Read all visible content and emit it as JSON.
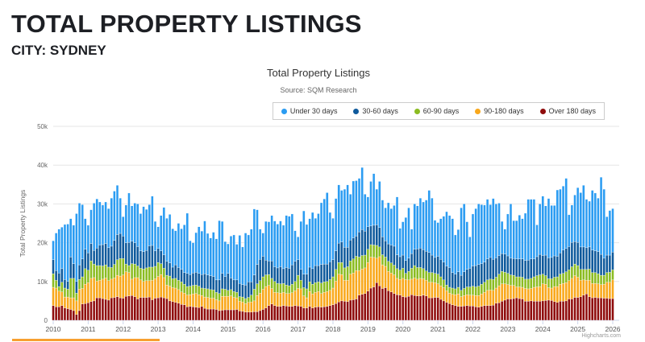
{
  "header": {
    "title": "TOTAL PROPERTY LISTINGS",
    "subtitle": "CITY: SYDNEY"
  },
  "chart_data": {
    "type": "bar",
    "stacked": true,
    "title": "Total Property Listings",
    "subtitle": "Source: SQM Research",
    "ylabel": "Total Property Listings",
    "xlabel": "",
    "ylim": [
      0,
      50
    ],
    "y_unit": "k",
    "yticks": [
      {
        "v": 0,
        "label": "0"
      },
      {
        "v": 10,
        "label": "10k"
      },
      {
        "v": 20,
        "label": "20k"
      },
      {
        "v": 30,
        "label": "30k"
      },
      {
        "v": 40,
        "label": "40k"
      },
      {
        "v": 50,
        "label": "50k"
      }
    ],
    "x_range": [
      "2010-01",
      "2026-01"
    ],
    "x_frequency": "monthly",
    "xticks": [
      "2010",
      "2011",
      "2012",
      "2013",
      "2014",
      "2015",
      "2016",
      "2017",
      "2018",
      "2019",
      "2020",
      "2021",
      "2022",
      "2023",
      "2024",
      "2025",
      "2026"
    ],
    "grid": true,
    "legend_position": "top-right",
    "credit": "Highcharts.com",
    "series": [
      {
        "name": "Under 30 days",
        "color": "#2b9cf2",
        "values": [
          4.9,
          9.7,
          11.3,
          10.7,
          14.2,
          14.8,
          9.9,
          9.9,
          17.5,
          15.9,
          14,
          7.9,
          7.1,
          8.7,
          12.2,
          12.7,
          11.1,
          10.2,
          10.7,
          10.1,
          12.4,
          12.7,
          12.7,
          9.1,
          5,
          9.7,
          12.7,
          9.1,
          10.2,
          11,
          9.6,
          11.6,
          10.6,
          10.6,
          12.7,
          7.6,
          5.6,
          9.1,
          12.2,
          11.1,
          12.5,
          9.9,
          8.8,
          11.4,
          10.5,
          12.3,
          15.5,
          8.7,
          7.8,
          10.2,
          12,
          11.2,
          13.6,
          10.7,
          9.7,
          11.4,
          10.6,
          15.3,
          13.4,
          9,
          7.6,
          10.8,
          11.6,
          9.2,
          12.4,
          9.7,
          13.4,
          12.1,
          13.6,
          17,
          14.1,
          7.8,
          6,
          10,
          10.1,
          11.7,
          11.8,
          11.3,
          11.8,
          11.2,
          13.4,
          13.4,
          13.1,
          7.9,
          5.9,
          12.4,
          16.3,
          12.8,
          12.5,
          14.5,
          12.2,
          13.4,
          15.9,
          16.8,
          18.4,
          12.7,
          10.7,
          13.5,
          15,
          13.3,
          15,
          16.1,
          11.8,
          14.7,
          14.3,
          13.8,
          16,
          9.5,
          7.7,
          11.5,
          13.3,
          9.2,
          11.9,
          9.5,
          8.5,
          10.6,
          9.4,
          10.5,
          14.9,
          7.3,
          8.6,
          11.1,
          13,
          6.3,
          11.7,
          11.1,
          12.9,
          12.3,
          13.2,
          16,
          14.7,
          9.6,
          8.7,
          10.5,
          11.8,
          14,
          13.4,
          13.9,
          10.1,
          10.9,
          17.4,
          17.5,
          12.3,
          8.1,
          13.4,
          14.7,
          15.6,
          15.2,
          14.7,
          15.4,
          13.6,
          15.7,
          13.9,
          13.5,
          8.3,
          6.4,
          10.8,
          14,
          9.8,
          9.9,
          11.3,
          10.4,
          12.2,
          15.7,
          15.4,
          15.4,
          8.2,
          13,
          15.3,
          12.7,
          15.3,
          13.4,
          13,
          17.1,
          16.4,
          16.5,
          18.1,
          8.2,
          9.6,
          12,
          14.1,
          14,
          15.9,
          12.5,
          11.8,
          15.4,
          14.9,
          13.8,
          19.9,
          17.8,
          9.9,
          11.5,
          11.2
        ]
      },
      {
        "name": "30-60 days",
        "color": "#0f5a9c",
        "values": [
          3.6,
          2.5,
          3.5,
          3.5,
          2.2,
          2,
          5.5,
          3.8,
          3,
          3.8,
          4.6,
          5,
          4.5,
          4.5,
          3.5,
          4.5,
          5.3,
          5.5,
          5.5,
          5,
          5.5,
          6.2,
          6.5,
          6.5,
          5.8,
          5.5,
          6,
          5.8,
          5.5,
          5,
          4.5,
          4.5,
          4.5,
          5.5,
          5.6,
          4,
          3.6,
          3.3,
          3.5,
          3.6,
          3.4,
          3,
          3.5,
          3.3,
          3.2,
          3,
          3.4,
          3,
          3.2,
          3.3,
          3.3,
          3.5,
          3.8,
          3.6,
          3.6,
          3.5,
          3.2,
          3.5,
          4,
          3.3,
          4.4,
          3,
          3,
          3.2,
          3.4,
          3.2,
          3.5,
          4,
          3.4,
          3.7,
          5,
          5.5,
          5.3,
          3.8,
          3.5,
          4.5,
          3.8,
          4,
          4.4,
          3.8,
          4.5,
          4.5,
          5,
          5.2,
          4,
          2.8,
          3.5,
          3.8,
          3.8,
          4,
          4.4,
          4.2,
          4.8,
          4.6,
          4.5,
          4.6,
          4.4,
          4.8,
          5,
          5.3,
          5.3,
          5,
          5.4,
          5.4,
          5.2,
          6.5,
          6.7,
          6.2,
          5.8,
          4.8,
          5.1,
          5.3,
          5,
          4.6,
          4.2,
          4.5,
          4.6,
          4.9,
          3.6,
          3.5,
          3.4,
          3.3,
          3.4,
          3.8,
          4.2,
          4.8,
          5,
          4.9,
          5.1,
          5.2,
          4.5,
          4.1,
          4.6,
          4.5,
          4.6,
          4.9,
          5.1,
          4,
          3.8,
          4,
          3.9,
          4.3,
          4.5,
          4.8,
          5.2,
          5.5,
          5.6,
          5.3,
          5.2,
          5.4,
          5.6,
          5.2,
          5,
          4.8,
          4.6,
          4.7,
          4.5,
          4.3,
          4.3,
          4.6,
          4.6,
          4.7,
          4.8,
          4.9,
          5,
          4.6,
          4.9,
          5.3,
          4.8,
          5.3,
          5.4,
          5.5,
          5.5,
          5.3,
          5.5,
          6,
          6,
          6,
          6.3,
          5.8,
          6,
          5.8,
          5.8,
          5.6,
          5.7,
          5.8,
          5.6,
          5.7,
          5.4,
          4.4,
          4.5,
          4.4,
          4.6
        ]
      },
      {
        "name": "60-90 days",
        "color": "#8bbc21",
        "values": [
          3.5,
          2,
          1.2,
          2.5,
          2.3,
          2,
          5,
          5,
          2,
          2.5,
          3,
          4,
          3.2,
          4.5,
          3.5,
          4,
          3.8,
          3.4,
          3.4,
          3.5,
          3,
          3.5,
          4,
          4.5,
          4.2,
          2,
          1.8,
          4,
          3.5,
          3,
          3,
          3.2,
          3.3,
          3.5,
          3.4,
          3.2,
          3.6,
          2.8,
          2.4,
          2.5,
          2.6,
          2.3,
          2.5,
          2.4,
          2.6,
          2.3,
          2.2,
          2.2,
          2.2,
          2.2,
          2.2,
          1.9,
          2.2,
          2.2,
          2.2,
          2.1,
          1.9,
          1.9,
          1.9,
          1.8,
          1.5,
          1.6,
          1.5,
          1.4,
          1.2,
          1.3,
          1.3,
          1.3,
          1.8,
          3,
          3,
          3.2,
          3.2,
          3,
          2.8,
          2.6,
          2.8,
          2.4,
          2.4,
          2.3,
          2.2,
          2,
          2.2,
          2.4,
          3.4,
          2.2,
          2.1,
          2.3,
          2.5,
          2.5,
          2.5,
          2.5,
          2.7,
          2.7,
          2.6,
          2.8,
          2.9,
          3,
          3,
          3.1,
          3.2,
          3.5,
          3.4,
          3.6,
          3.7,
          3.5,
          3.5,
          3.3,
          3.4,
          3.2,
          3.2,
          3.3,
          2.5,
          2.6,
          2.4,
          2.6,
          2.6,
          2.5,
          2.5,
          2.4,
          2.6,
          1.6,
          2.2,
          2.8,
          3.2,
          3,
          2.8,
          2.6,
          2.4,
          2.5,
          2.5,
          2.4,
          2.5,
          2.3,
          2,
          1.5,
          1.5,
          1.6,
          1.5,
          1.7,
          1.6,
          1.8,
          2,
          2.1,
          2.3,
          2.2,
          2.4,
          2.5,
          2.6,
          2.7,
          2.8,
          2.8,
          2.8,
          3,
          3.2,
          3,
          2.9,
          2.7,
          2.6,
          2.6,
          2.6,
          2.6,
          2.4,
          2.5,
          2.6,
          2.7,
          2.9,
          3,
          2.5,
          2.2,
          2.3,
          2.4,
          2.4,
          2.5,
          2.6,
          2.6,
          2.8,
          2.8,
          3,
          3,
          3,
          2.8,
          2.7,
          2.8,
          2.9,
          2.8,
          2.8,
          2.6,
          2.4,
          2.3,
          2.5,
          2.6,
          2.6
        ]
      },
      {
        "name": "90-180 days",
        "color": "#f9a81b",
        "values": [
          4.7,
          4.8,
          4,
          3.5,
          2.8,
          3,
          3,
          3.3,
          3.5,
          5.5,
          4,
          5,
          5.2,
          6,
          6,
          4.3,
          4.5,
          5,
          5.5,
          5,
          4.8,
          5,
          5.5,
          5.6,
          6,
          6.3,
          6,
          4.2,
          4.9,
          5.5,
          4.5,
          4.1,
          4.3,
          4.2,
          5,
          5,
          5.5,
          5.8,
          5.2,
          3.5,
          3.8,
          3.6,
          3.7,
          3.5,
          3.2,
          3,
          3,
          3,
          3.3,
          3.5,
          3.3,
          2.8,
          2.9,
          3,
          2.8,
          2.8,
          2.5,
          2.5,
          3.6,
          3.5,
          3.5,
          3.6,
          3.2,
          3,
          2.5,
          2.4,
          2.2,
          2.5,
          2.6,
          2.8,
          4.2,
          4.5,
          5.2,
          5.5,
          5.2,
          4,
          3.4,
          3.5,
          3.4,
          3.4,
          3.2,
          3.3,
          3.5,
          3.8,
          4.5,
          4.5,
          3.1,
          2.6,
          3.8,
          3.6,
          3.8,
          3.9,
          3.5,
          3.7,
          3.8,
          3.9,
          4.3,
          5.8,
          7.2,
          6.8,
          5.4,
          5.5,
          6.7,
          6.9,
          7.3,
          6.3,
          6.5,
          6.6,
          7.4,
          8,
          7.6,
          6.3,
          7.5,
          6.1,
          5.5,
          5,
          4.9,
          4.8,
          4.2,
          4,
          4.7,
          4.5,
          4.2,
          4,
          4.5,
          4.3,
          4.5,
          4.2,
          4,
          4,
          4,
          3.8,
          3.5,
          3.5,
          3.4,
          3,
          2.7,
          2.7,
          2.8,
          3.2,
          2.5,
          2.7,
          2.8,
          2.8,
          2.8,
          2.9,
          3,
          3.2,
          3.4,
          3.9,
          4,
          3.8,
          3.9,
          4.4,
          4.5,
          4.2,
          3.7,
          3.5,
          3.4,
          2.8,
          3,
          3,
          3.3,
          3.2,
          3.2,
          3.6,
          3.7,
          3.8,
          4.4,
          4.2,
          3.2,
          3.2,
          3.9,
          4.1,
          4.4,
          4.6,
          4.7,
          4.7,
          5.3,
          5.6,
          5.2,
          4.2,
          3.9,
          3.5,
          4.2,
          3.7,
          3.6,
          3.6,
          3.4,
          3.6,
          4.1,
          4.2,
          4.8
        ]
      },
      {
        "name": "Over 180 days",
        "color": "#8f0c0c",
        "values": [
          3.8,
          3.5,
          3.5,
          3.8,
          3.2,
          3,
          2.8,
          2.5,
          1.5,
          2.5,
          4.2,
          4.3,
          4.5,
          4.8,
          5,
          5.8,
          5.8,
          5.6,
          5.4,
          5.2,
          5.8,
          5.9,
          6.1,
          5.8,
          5.7,
          6.2,
          6.3,
          6.4,
          6.1,
          5.5,
          5.9,
          5.9,
          5.9,
          6,
          5.3,
          5.7,
          5.8,
          6,
          5.8,
          5.6,
          5,
          4.8,
          4.6,
          4.4,
          4.1,
          4,
          3.5,
          3.6,
          3.5,
          3.4,
          3.3,
          3.6,
          3.1,
          2.9,
          2.9,
          2.9,
          2.8,
          2.5,
          2.6,
          2.7,
          2.7,
          2.7,
          2.7,
          2.8,
          2.4,
          2.3,
          2.1,
          2.1,
          2.1,
          2.2,
          2.2,
          2.5,
          2.8,
          3.2,
          3.8,
          4.2,
          3.8,
          3.6,
          3.6,
          3.8,
          3.7,
          3.6,
          3.6,
          3.8,
          3.7,
          3.6,
          3.2,
          3.2,
          3.6,
          3.2,
          3.4,
          3.5,
          3.4,
          3.5,
          3.6,
          3.8,
          4,
          4.3,
          4.7,
          5,
          4.9,
          4.8,
          5.2,
          5.3,
          5.5,
          6.5,
          6.7,
          6.9,
          7.5,
          8.3,
          8.6,
          9.7,
          8.9,
          8.2,
          8.4,
          7.6,
          7.3,
          6.9,
          6.6,
          6.5,
          6.1,
          6,
          6.2,
          6.6,
          6.4,
          6.3,
          6.3,
          6.5,
          6.3,
          5.8,
          5.8,
          5.9,
          5.9,
          5.4,
          5,
          4.6,
          4.3,
          4,
          3.8,
          3.6,
          3.6,
          3.7,
          3.8,
          3.7,
          3.7,
          3.5,
          3.4,
          3.6,
          3.8,
          3.8,
          3.8,
          3.9,
          4.4,
          4.5,
          4.9,
          5.2,
          5.5,
          5.5,
          5.6,
          5.8,
          5.6,
          5.5,
          4.9,
          4.9,
          5,
          4.9,
          4.9,
          4.9,
          5,
          5.1,
          5.2,
          5.1,
          4.8,
          4.6,
          4.9,
          4.9,
          5,
          5.5,
          5.5,
          5.9,
          5.9,
          6.1,
          6.5,
          6.8,
          6.1,
          5.8,
          5.9,
          5.8,
          5.8,
          5.7,
          5.7,
          5.6,
          5.6
        ]
      }
    ]
  }
}
